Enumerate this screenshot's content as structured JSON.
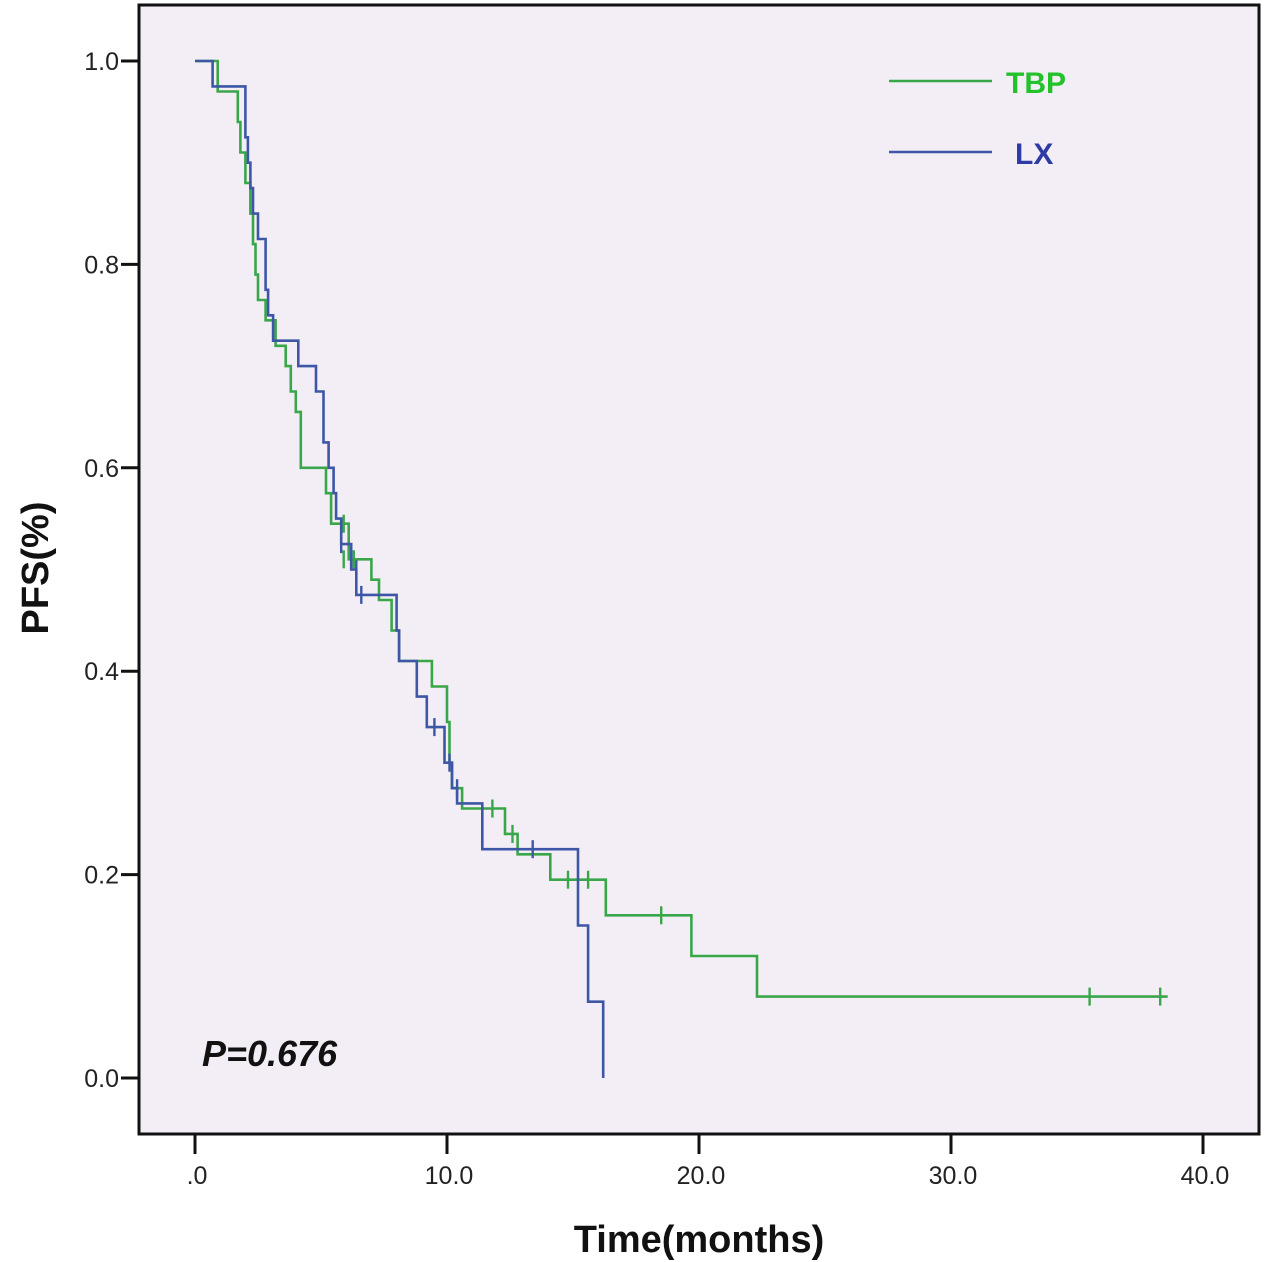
{
  "chart_data": {
    "type": "line",
    "subtype": "kaplan-meier step",
    "title": "",
    "xlabel": "Time(months)",
    "ylabel": "PFS(%)",
    "xlim": [
      -2.2,
      42.2
    ],
    "ylim": [
      -0.055,
      1.055
    ],
    "x_ticks": [
      0,
      10,
      20,
      30,
      40
    ],
    "x_tick_labels": [
      ".0",
      "10.0",
      "20.0",
      "30.0",
      "40.0"
    ],
    "y_ticks": [
      0,
      0.2,
      0.4,
      0.6,
      0.8,
      1.0
    ],
    "y_tick_labels": [
      "0.0",
      "0.2",
      "0.4",
      "0.6",
      "0.8",
      "1.0"
    ],
    "grid": false,
    "background": "#f3eef5",
    "legend_position": "top-right",
    "annotation": "P=0.676",
    "series": [
      {
        "name": "TBP",
        "color": "#3aa64a",
        "label_color": "#22c22a",
        "steps": [
          [
            0.0,
            1.0
          ],
          [
            0.9,
            0.97
          ],
          [
            1.7,
            0.94
          ],
          [
            1.8,
            0.91
          ],
          [
            2.0,
            0.88
          ],
          [
            2.2,
            0.85
          ],
          [
            2.3,
            0.82
          ],
          [
            2.4,
            0.79
          ],
          [
            2.5,
            0.765
          ],
          [
            2.8,
            0.745
          ],
          [
            3.2,
            0.72
          ],
          [
            3.6,
            0.7
          ],
          [
            3.8,
            0.675
          ],
          [
            4.0,
            0.655
          ],
          [
            4.2,
            0.6
          ],
          [
            5.2,
            0.575
          ],
          [
            5.4,
            0.545
          ],
          [
            6.1,
            0.51
          ],
          [
            7.0,
            0.49
          ],
          [
            7.3,
            0.47
          ],
          [
            7.8,
            0.44
          ],
          [
            8.1,
            0.41
          ],
          [
            9.4,
            0.385
          ],
          [
            10.0,
            0.35
          ],
          [
            10.1,
            0.31
          ],
          [
            10.2,
            0.285
          ],
          [
            10.6,
            0.265
          ],
          [
            12.3,
            0.24
          ],
          [
            12.8,
            0.22
          ],
          [
            14.1,
            0.195
          ],
          [
            16.3,
            0.16
          ],
          [
            19.7,
            0.12
          ],
          [
            22.3,
            0.08
          ],
          [
            38.6,
            0.08
          ]
        ],
        "censored": [
          [
            5.9,
            0.545
          ],
          [
            5.9,
            0.51
          ],
          [
            6.3,
            0.51
          ],
          [
            11.8,
            0.265
          ],
          [
            12.6,
            0.24
          ],
          [
            14.8,
            0.195
          ],
          [
            15.6,
            0.195
          ],
          [
            18.5,
            0.16
          ],
          [
            35.5,
            0.08
          ],
          [
            38.3,
            0.08
          ]
        ]
      },
      {
        "name": "LX",
        "color": "#3d56a6",
        "label_color": "#2e3aa6",
        "steps": [
          [
            0.0,
            1.0
          ],
          [
            0.7,
            0.975
          ],
          [
            2.0,
            0.95
          ],
          [
            2.0,
            0.925
          ],
          [
            2.1,
            0.9
          ],
          [
            2.2,
            0.875
          ],
          [
            2.3,
            0.85
          ],
          [
            2.5,
            0.825
          ],
          [
            2.8,
            0.775
          ],
          [
            2.9,
            0.75
          ],
          [
            3.1,
            0.725
          ],
          [
            4.1,
            0.7
          ],
          [
            4.8,
            0.675
          ],
          [
            5.1,
            0.625
          ],
          [
            5.3,
            0.6
          ],
          [
            5.5,
            0.575
          ],
          [
            5.6,
            0.55
          ],
          [
            5.8,
            0.525
          ],
          [
            6.2,
            0.5
          ],
          [
            6.4,
            0.475
          ],
          [
            8.0,
            0.44
          ],
          [
            8.1,
            0.41
          ],
          [
            8.8,
            0.375
          ],
          [
            9.2,
            0.345
          ],
          [
            9.9,
            0.31
          ],
          [
            10.2,
            0.285
          ],
          [
            10.4,
            0.27
          ],
          [
            11.4,
            0.225
          ],
          [
            15.2,
            0.15
          ],
          [
            15.6,
            0.075
          ],
          [
            16.2,
            0.0
          ]
        ],
        "censored": [
          [
            5.8,
            0.525
          ],
          [
            6.4,
            0.5
          ],
          [
            6.6,
            0.475
          ],
          [
            9.5,
            0.345
          ],
          [
            10.1,
            0.31
          ],
          [
            10.4,
            0.285
          ],
          [
            13.4,
            0.225
          ]
        ]
      }
    ]
  }
}
